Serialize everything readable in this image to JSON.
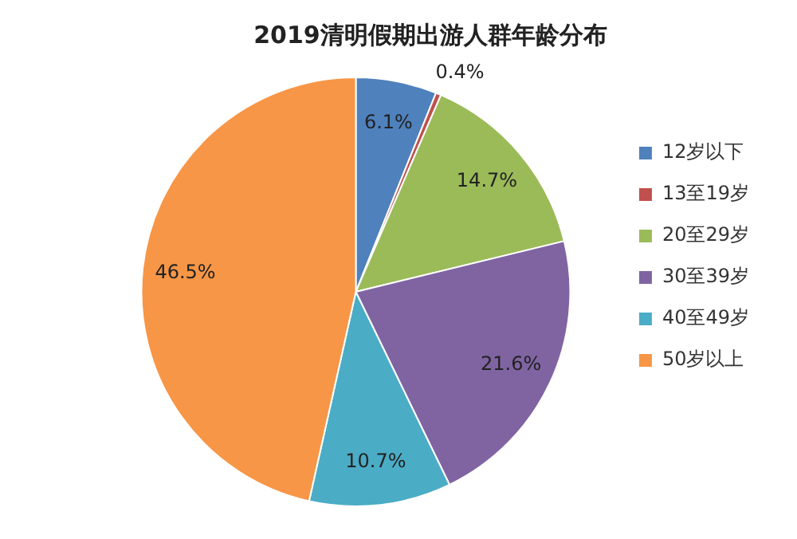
{
  "chart_data": {
    "type": "pie",
    "title": "2019清明假期出游人群年龄分布",
    "categories": [
      "12岁以下",
      "13至19岁",
      "20至29岁",
      "30至39岁",
      "40至49岁",
      "50岁以上"
    ],
    "values": [
      6.1,
      0.4,
      14.7,
      21.6,
      10.7,
      46.5
    ],
    "colors": [
      "#4f81bd",
      "#c0504d",
      "#9bbb59",
      "#8064a2",
      "#4bacc6",
      "#f79646"
    ],
    "value_labels": [
      "6.1%",
      "0.4%",
      "14.7%",
      "21.6%",
      "10.7%",
      "46.5%"
    ],
    "legend": "right"
  }
}
